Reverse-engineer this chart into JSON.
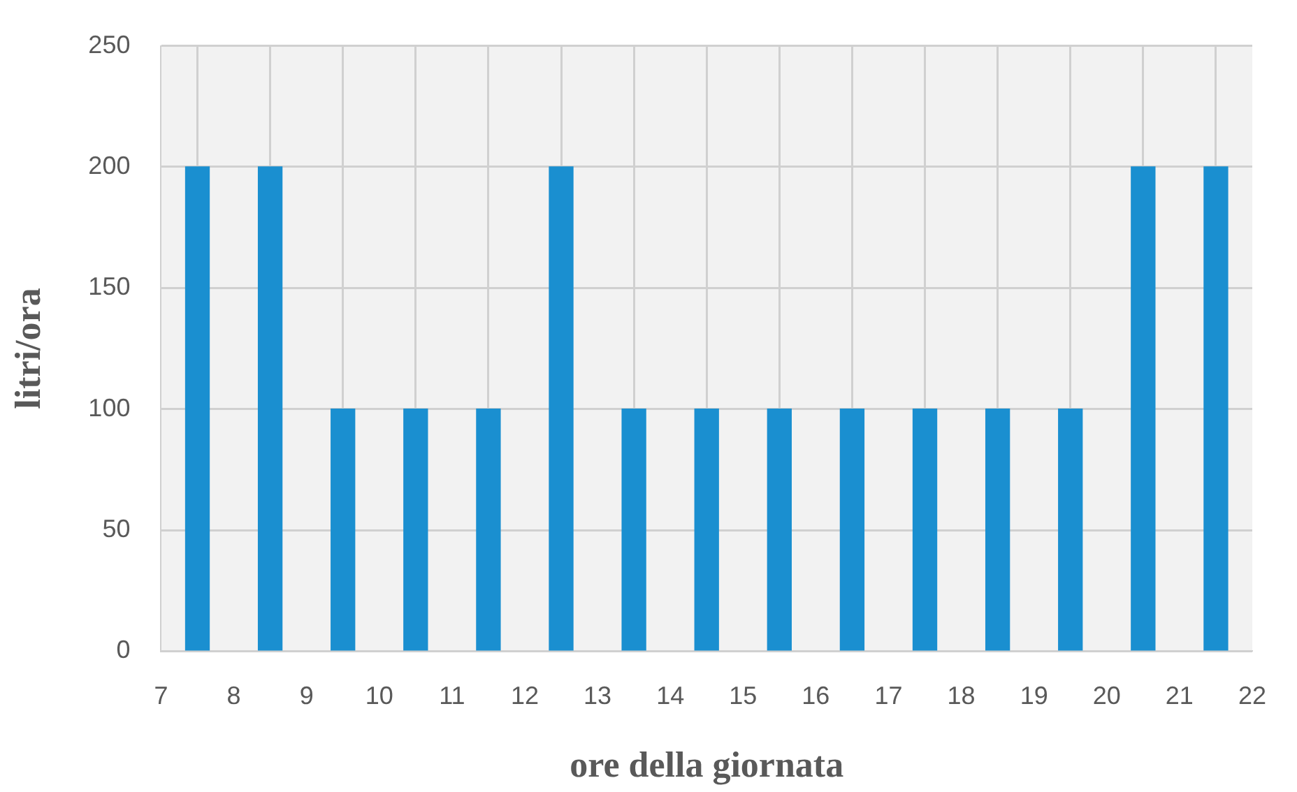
{
  "chart_data": {
    "type": "bar",
    "x": [
      7.5,
      8.5,
      9.5,
      10.5,
      11.5,
      12.5,
      13.5,
      14.5,
      15.5,
      16.5,
      17.5,
      18.5,
      19.5,
      20.5,
      21.5
    ],
    "values": [
      200,
      200,
      100,
      100,
      100,
      200,
      100,
      100,
      100,
      100,
      100,
      100,
      100,
      200,
      200
    ],
    "color": "#1a8fd0",
    "xlim": [
      7,
      22
    ],
    "xticks": [
      7,
      8,
      9,
      10,
      11,
      12,
      13,
      14,
      15,
      16,
      17,
      18,
      19,
      20,
      21,
      22
    ],
    "ylim": [
      0,
      250
    ],
    "yticks": [
      0,
      50,
      100,
      150,
      200,
      250
    ],
    "xlabel": "ore della giornata",
    "ylabel": "litri/ora",
    "grid": true
  }
}
